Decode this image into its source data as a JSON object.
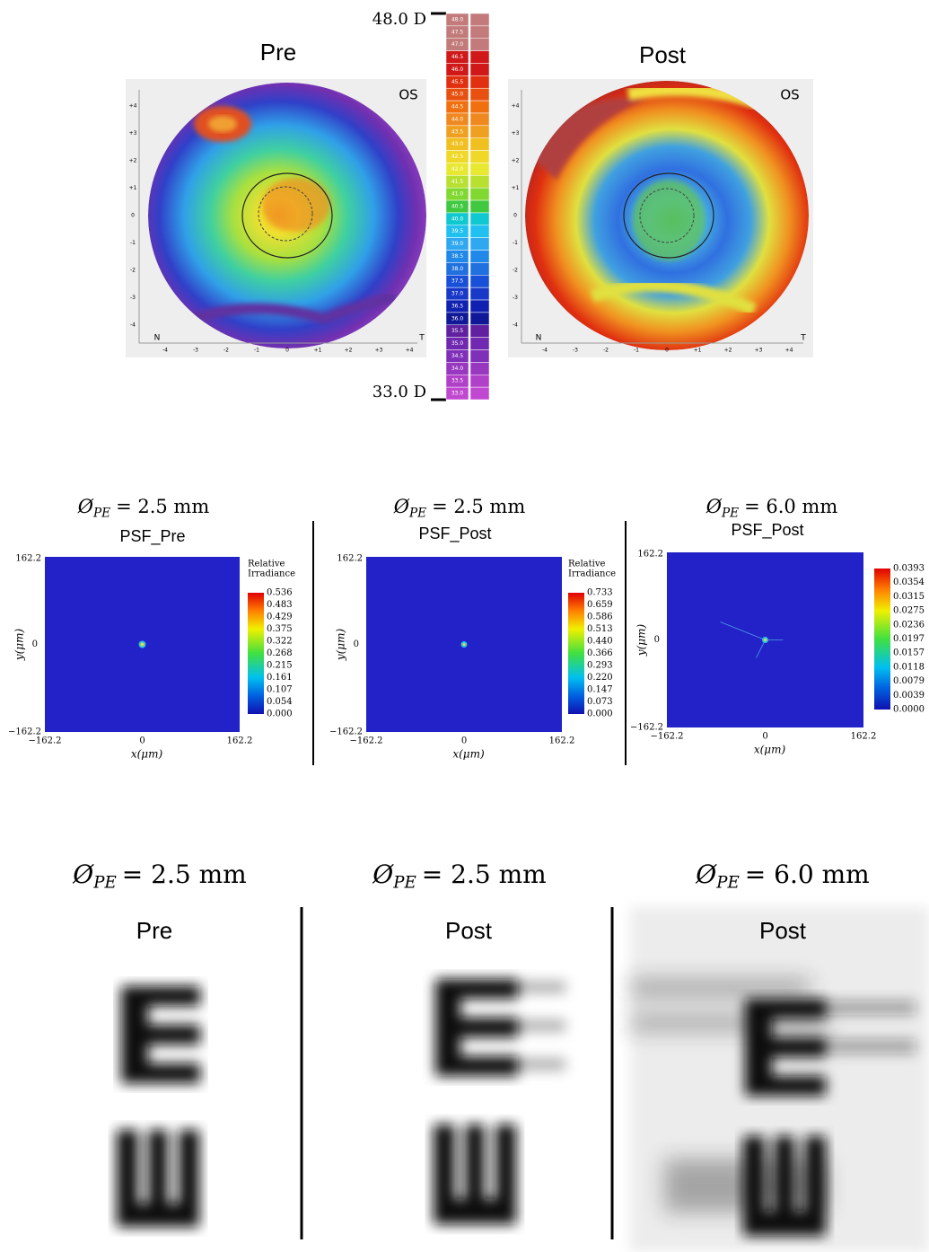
{
  "topography": {
    "scale": {
      "max_label": "48.0 D",
      "min_label": "33.0 D",
      "steps": [
        "48.0",
        "47.5",
        "47.0",
        "46.5",
        "46.0",
        "45.5",
        "45.0",
        "44.5",
        "44.0",
        "43.5",
        "43.0",
        "42.5",
        "42.0",
        "41.5",
        "41.0",
        "40.5",
        "40.0",
        "39.5",
        "39.0",
        "38.5",
        "38.0",
        "37.5",
        "37.0",
        "36.5",
        "36.0",
        "35.5",
        "35.0",
        "34.5",
        "34.0",
        "33.5",
        "33.0"
      ]
    },
    "axis_ticks": [
      "-4",
      "-3",
      "-2",
      "-1",
      "0",
      "+1",
      "+2",
      "+3",
      "+4"
    ],
    "maps": [
      {
        "title": "Pre",
        "eye": "OS",
        "nasal": "N",
        "temporal": "T"
      },
      {
        "title": "Post",
        "eye": "OS",
        "nasal": "N",
        "temporal": "T"
      }
    ]
  },
  "psf": {
    "x_label": "x(μm)",
    "y_label": "y(μm)",
    "zero": "0",
    "panels": [
      {
        "symbol": "Ø",
        "subscript": "PE",
        "equation": "= 2.5 mm",
        "title": "PSF_Pre",
        "max": "162.2",
        "min": "−162.2",
        "colorbar_title": [
          "Relative",
          "Irradiance"
        ],
        "colorbar_ticks": [
          "0.536",
          "0.483",
          "0.429",
          "0.375",
          "0.322",
          "0.268",
          "0.215",
          "0.161",
          "0.107",
          "0.054",
          "0.000"
        ]
      },
      {
        "symbol": "Ø",
        "subscript": "PE",
        "equation": "= 2.5 mm",
        "title": "PSF_Post",
        "max": "162.2",
        "min": "−162.2",
        "colorbar_title": [
          "Relative",
          "Irradiance"
        ],
        "colorbar_ticks": [
          "0.733",
          "0.659",
          "0.586",
          "0.513",
          "0.440",
          "0.366",
          "0.293",
          "0.220",
          "0.147",
          "0.073",
          "0.000"
        ]
      },
      {
        "symbol": "Ø",
        "subscript": "PE",
        "equation": "= 6.0 mm",
        "title": "PSF_Post",
        "max": "162.2",
        "min": "−162.2",
        "colorbar_ticks": [
          "0.0393",
          "0.0354",
          "0.0315",
          "0.0275",
          "0.0236",
          "0.0197",
          "0.0157",
          "0.0118",
          "0.0079",
          "0.0039",
          "0.0000"
        ]
      }
    ]
  },
  "simulation": {
    "panels": [
      {
        "symbol": "Ø",
        "subscript": "PE",
        "equation": "= 2.5 mm",
        "title": "Pre"
      },
      {
        "symbol": "Ø",
        "subscript": "PE",
        "equation": "= 2.5 mm",
        "title": "Post"
      },
      {
        "symbol": "Ø",
        "subscript": "PE",
        "equation": "= 6.0 mm",
        "title": "Post"
      }
    ]
  }
}
